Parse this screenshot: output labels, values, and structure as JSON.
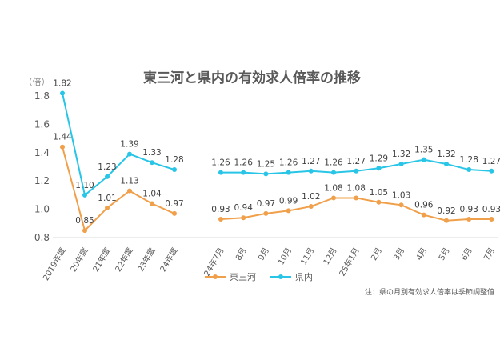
{
  "chart_data": {
    "type": "line",
    "title": "東三河と県内の有効求人倍率の推移",
    "ylabel": "（倍）",
    "ylim": [
      0.8,
      1.8
    ],
    "yticks": [
      "0.8",
      "1.0",
      "1.2",
      "1.4",
      "1.6",
      "1.8"
    ],
    "grid": false,
    "legend_position": "bottom-left",
    "note": "注：県の月別有効求人倍率は季節調整値",
    "colors": {
      "higashi_mikawa": "#f0a04b",
      "aichi": "#29c5e6"
    },
    "segments": [
      {
        "categories": [
          "2019年度",
          "20年度",
          "21年度",
          "22年度",
          "23年度",
          "24年度"
        ],
        "series": [
          {
            "name": "東三河",
            "values": [
              1.44,
              0.85,
              1.01,
              1.13,
              1.04,
              0.97
            ],
            "labels": [
              "1.44",
              "0.85",
              "1.01",
              "1.13",
              "1.04",
              "0.97"
            ]
          },
          {
            "name": "県内",
            "values": [
              1.82,
              1.1,
              1.23,
              1.39,
              1.33,
              1.28
            ],
            "labels": [
              "1.82",
              "1.10",
              "1.23",
              "1.39",
              "1.33",
              "1.28"
            ]
          }
        ]
      },
      {
        "categories": [
          "24年7月",
          "8月",
          "9月",
          "10月",
          "11月",
          "12月",
          "25年1月",
          "2月",
          "3月",
          "4月",
          "5月",
          "6月",
          "7月"
        ],
        "series": [
          {
            "name": "東三河",
            "values": [
              0.93,
              0.94,
              0.97,
              0.99,
              1.02,
              1.08,
              1.08,
              1.05,
              1.03,
              0.96,
              0.92,
              0.93,
              0.93
            ],
            "labels": [
              "0.93",
              "0.94",
              "0.97",
              "0.99",
              "1.02",
              "1.08",
              "1.08",
              "1.05",
              "1.03",
              "0.96",
              "0.92",
              "0.93",
              "0.93"
            ]
          },
          {
            "name": "県内",
            "values": [
              1.26,
              1.26,
              1.25,
              1.26,
              1.27,
              1.26,
              1.27,
              1.29,
              1.32,
              1.35,
              1.32,
              1.28,
              1.27
            ],
            "labels": [
              "1.26",
              "1.26",
              "1.25",
              "1.26",
              "1.27",
              "1.26",
              "1.27",
              "1.29",
              "1.32",
              "1.35",
              "1.32",
              "1.28",
              "1.27"
            ]
          }
        ]
      }
    ],
    "legend": [
      {
        "name": "東三河",
        "color_key": "higashi_mikawa"
      },
      {
        "name": "県内",
        "color_key": "aichi"
      }
    ]
  }
}
